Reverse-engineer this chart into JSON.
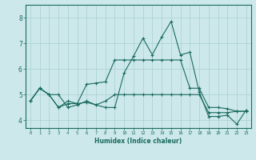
{
  "xlabel": "Humidex (Indice chaleur)",
  "xlim": [
    -0.5,
    23.5
  ],
  "ylim": [
    3.7,
    8.5
  ],
  "yticks": [
    4,
    5,
    6,
    7,
    8
  ],
  "xticks": [
    0,
    1,
    2,
    3,
    4,
    5,
    6,
    7,
    8,
    9,
    10,
    11,
    12,
    13,
    14,
    15,
    16,
    17,
    18,
    19,
    20,
    21,
    22,
    23
  ],
  "background_color": "#cce8ea",
  "line_color": "#1a6b60",
  "grid_color": "#aacfd4",
  "line1_x": [
    0,
    1,
    2,
    3,
    4,
    5,
    6,
    7,
    8,
    9,
    10,
    11,
    12,
    13,
    14,
    15,
    16,
    17,
    18,
    19,
    20,
    21,
    22,
    23
  ],
  "line1_y": [
    4.75,
    5.25,
    5.0,
    5.0,
    4.5,
    4.6,
    4.75,
    4.6,
    4.75,
    5.0,
    5.0,
    5.0,
    5.0,
    5.0,
    5.0,
    5.0,
    5.0,
    5.0,
    5.0,
    4.3,
    4.3,
    4.3,
    4.35,
    4.35
  ],
  "line2_x": [
    0,
    1,
    2,
    3,
    4,
    5,
    6,
    7,
    8,
    9,
    10,
    11,
    12,
    13,
    14,
    15,
    16,
    17,
    18,
    19,
    20,
    21,
    22,
    23
  ],
  "line2_y": [
    4.75,
    5.25,
    5.0,
    4.5,
    4.75,
    4.65,
    5.4,
    5.45,
    5.5,
    6.35,
    6.35,
    6.35,
    6.35,
    6.35,
    6.35,
    6.35,
    6.35,
    5.25,
    5.25,
    4.5,
    4.5,
    4.45,
    4.35,
    4.35
  ],
  "line3_x": [
    0,
    1,
    2,
    3,
    4,
    5,
    6,
    7,
    8,
    9,
    10,
    11,
    12,
    13,
    14,
    15,
    16,
    17,
    18,
    19,
    20,
    21,
    22,
    23
  ],
  "line3_y": [
    4.75,
    5.25,
    5.0,
    4.5,
    4.65,
    4.65,
    4.7,
    4.6,
    4.5,
    4.5,
    5.85,
    6.5,
    7.2,
    6.55,
    7.25,
    7.85,
    6.55,
    6.65,
    5.1,
    4.15,
    4.15,
    4.2,
    3.85,
    4.4
  ]
}
